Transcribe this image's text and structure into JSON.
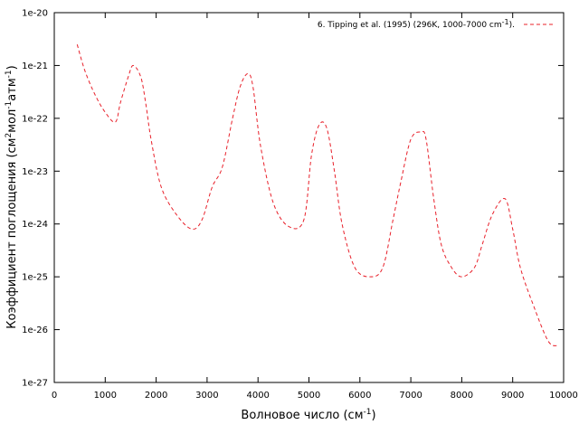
{
  "chart_data": {
    "type": "line",
    "title": "",
    "xlabel": {
      "prefix": "Волновое число (см",
      "sup": "-1",
      "suffix": ")"
    },
    "ylabel": {
      "parts": [
        {
          "t": "Коэффициент поглощения (см"
        },
        {
          "t": "2",
          "sup": true
        },
        {
          "t": "мол"
        },
        {
          "t": "-1",
          "sup": true
        },
        {
          "t": "атм"
        },
        {
          "t": "-1",
          "sup": true
        },
        {
          "t": ")"
        }
      ]
    },
    "xlim": [
      0,
      10000
    ],
    "ylim_log10": [
      -27,
      -20
    ],
    "yscale": "log",
    "grid": false,
    "x_ticks": [
      0,
      1000,
      2000,
      3000,
      4000,
      5000,
      6000,
      7000,
      8000,
      9000,
      10000
    ],
    "x_tick_labels": [
      "0",
      "1000",
      "2000",
      "3000",
      "4000",
      "5000",
      "6000",
      "7000",
      "8000",
      "9000",
      "10000"
    ],
    "y_ticks_log10": [
      -27,
      -26,
      -25,
      -24,
      -23,
      -22,
      -21,
      -20
    ],
    "y_tick_labels": [
      "1e-27",
      "1e-26",
      "1e-25",
      "1e-24",
      "1e-23",
      "1e-22",
      "1e-21",
      "1e-20"
    ],
    "legend_position": "top-right",
    "series": [
      {
        "name": {
          "prefix": "6. Tipping et al. (1995) (296K, 1000-7000 cm",
          "sup": "-1",
          "suffix": ")."
        },
        "color": "#e8202a",
        "style": "dashed",
        "x": [
          450,
          600,
          800,
          1000,
          1200,
          1300,
          1450,
          1550,
          1700,
          1800,
          1900,
          2100,
          2400,
          2700,
          2900,
          3100,
          3300,
          3500,
          3650,
          3800,
          3900,
          4050,
          4300,
          4600,
          4900,
          5050,
          5200,
          5350,
          5500,
          5650,
          5900,
          6200,
          6450,
          6650,
          6800,
          7000,
          7200,
          7300,
          7450,
          7600,
          7800,
          8000,
          8250,
          8400,
          8600,
          8850,
          9000,
          9150,
          9400,
          9700,
          9900
        ],
        "y": [
          2.5e-21,
          8e-22,
          2.8e-22,
          1.3e-22,
          8.5e-23,
          2e-22,
          6e-22,
          1e-21,
          6e-22,
          1.8e-22,
          4e-23,
          5e-24,
          1.5e-24,
          8e-25,
          1.2e-24,
          5e-24,
          1.2e-23,
          1e-22,
          4e-22,
          7e-22,
          4e-22,
          3e-23,
          2.5e-24,
          9e-25,
          1.2e-24,
          2e-23,
          7.5e-23,
          6.5e-23,
          1e-23,
          1e-24,
          1.5e-25,
          1e-25,
          1.5e-25,
          1.2e-24,
          6e-24,
          4e-23,
          5.5e-23,
          4e-23,
          3e-24,
          4e-25,
          1.5e-25,
          1e-25,
          1.5e-25,
          4e-25,
          1.5e-24,
          3e-24,
          8e-25,
          1.5e-25,
          3e-26,
          6e-27,
          5e-27
        ]
      }
    ]
  }
}
